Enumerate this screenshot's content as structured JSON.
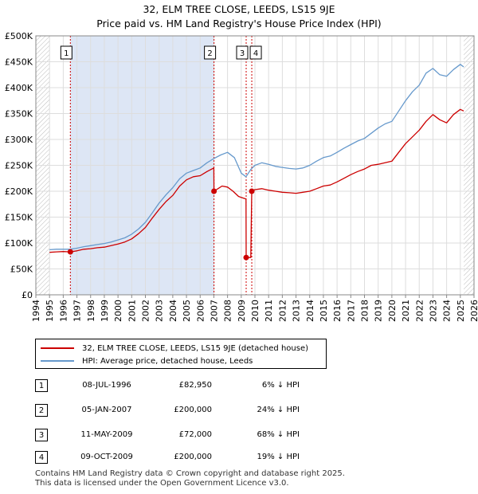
{
  "title_line1": "32, ELM TREE CLOSE, LEEDS, LS15 9JE",
  "title_line2": "Price paid vs. HM Land Registry's House Price Index (HPI)",
  "colors": {
    "price_line": "#cc0000",
    "hpi_line": "#6699cc",
    "shade": "#dde6f5",
    "marker": "#cc0000",
    "event_line": "#cc0000"
  },
  "chart_data": {
    "type": "line",
    "x_range": [
      1994.0,
      2026.0
    ],
    "ylim": [
      0,
      500000
    ],
    "y_ticks": [
      0,
      50000,
      100000,
      150000,
      200000,
      250000,
      300000,
      350000,
      400000,
      450000,
      500000
    ],
    "y_tick_labels": [
      "£0",
      "£50K",
      "£100K",
      "£150K",
      "£200K",
      "£250K",
      "£300K",
      "£350K",
      "£400K",
      "£450K",
      "£500K"
    ],
    "x_tick_labels": [
      "1994",
      "1995",
      "1996",
      "1997",
      "1998",
      "1999",
      "2000",
      "2001",
      "2002",
      "2003",
      "2004",
      "2005",
      "2006",
      "2007",
      "2008",
      "2009",
      "2010",
      "2011",
      "2012",
      "2013",
      "2014",
      "2015",
      "2016",
      "2017",
      "2018",
      "2019",
      "2020",
      "2021",
      "2022",
      "2023",
      "2024",
      "2025",
      "2026"
    ],
    "data_start": 1995.0,
    "data_end": 2025.25,
    "shaded_range": [
      1996.52,
      2007.01
    ],
    "hatched_from": 2025.25,
    "series": [
      {
        "name": "32, ELM TREE CLOSE, LEEDS, LS15 9JE (detached house)",
        "points": [
          [
            1995.0,
            82000
          ],
          [
            1995.5,
            83000
          ],
          [
            1996.0,
            83500
          ],
          [
            1996.5,
            82950
          ],
          [
            1997.0,
            85000
          ],
          [
            1997.5,
            88000
          ],
          [
            1998.0,
            89000
          ],
          [
            1998.5,
            91000
          ],
          [
            1999.0,
            92000
          ],
          [
            1999.5,
            95000
          ],
          [
            2000.0,
            98000
          ],
          [
            2000.5,
            102000
          ],
          [
            2001.0,
            108000
          ],
          [
            2001.5,
            118000
          ],
          [
            2002.0,
            130000
          ],
          [
            2002.5,
            148000
          ],
          [
            2003.0,
            165000
          ],
          [
            2003.5,
            180000
          ],
          [
            2004.0,
            192000
          ],
          [
            2004.5,
            210000
          ],
          [
            2005.0,
            222000
          ],
          [
            2005.5,
            228000
          ],
          [
            2006.0,
            230000
          ],
          [
            2006.5,
            238000
          ],
          [
            2007.0,
            245000
          ],
          [
            2007.01,
            200000
          ],
          [
            2007.3,
            205000
          ],
          [
            2007.6,
            210000
          ],
          [
            2008.0,
            208000
          ],
          [
            2008.4,
            200000
          ],
          [
            2008.8,
            190000
          ],
          [
            2009.0,
            188000
          ],
          [
            2009.35,
            185000
          ],
          [
            2009.36,
            72000
          ],
          [
            2009.5,
            72000
          ],
          [
            2009.7,
            72000
          ],
          [
            2009.77,
            200000
          ],
          [
            2010.0,
            203000
          ],
          [
            2010.5,
            205000
          ],
          [
            2011.0,
            202000
          ],
          [
            2011.5,
            200000
          ],
          [
            2012.0,
            198000
          ],
          [
            2012.5,
            197000
          ],
          [
            2013.0,
            196000
          ],
          [
            2013.5,
            198000
          ],
          [
            2014.0,
            200000
          ],
          [
            2014.5,
            205000
          ],
          [
            2015.0,
            210000
          ],
          [
            2015.5,
            212000
          ],
          [
            2016.0,
            218000
          ],
          [
            2016.5,
            225000
          ],
          [
            2017.0,
            232000
          ],
          [
            2017.5,
            238000
          ],
          [
            2018.0,
            243000
          ],
          [
            2018.5,
            250000
          ],
          [
            2019.0,
            252000
          ],
          [
            2019.5,
            255000
          ],
          [
            2020.0,
            258000
          ],
          [
            2020.5,
            275000
          ],
          [
            2021.0,
            292000
          ],
          [
            2021.5,
            305000
          ],
          [
            2022.0,
            318000
          ],
          [
            2022.5,
            335000
          ],
          [
            2023.0,
            348000
          ],
          [
            2023.5,
            338000
          ],
          [
            2024.0,
            332000
          ],
          [
            2024.5,
            348000
          ],
          [
            2025.0,
            358000
          ],
          [
            2025.25,
            355000
          ]
        ]
      },
      {
        "name": "HPI: Average price, detached house, Leeds",
        "points": [
          [
            1995.0,
            87000
          ],
          [
            1995.5,
            88000
          ],
          [
            1996.0,
            88000
          ],
          [
            1996.5,
            88000
          ],
          [
            1997.0,
            90000
          ],
          [
            1997.5,
            93000
          ],
          [
            1998.0,
            95000
          ],
          [
            1998.5,
            97000
          ],
          [
            1999.0,
            99000
          ],
          [
            1999.5,
            102000
          ],
          [
            2000.0,
            106000
          ],
          [
            2000.5,
            110000
          ],
          [
            2001.0,
            117000
          ],
          [
            2001.5,
            127000
          ],
          [
            2002.0,
            140000
          ],
          [
            2002.5,
            158000
          ],
          [
            2003.0,
            177000
          ],
          [
            2003.5,
            193000
          ],
          [
            2004.0,
            207000
          ],
          [
            2004.5,
            224000
          ],
          [
            2005.0,
            235000
          ],
          [
            2005.5,
            240000
          ],
          [
            2006.0,
            245000
          ],
          [
            2006.5,
            255000
          ],
          [
            2007.0,
            263000
          ],
          [
            2007.5,
            270000
          ],
          [
            2008.0,
            275000
          ],
          [
            2008.5,
            265000
          ],
          [
            2009.0,
            235000
          ],
          [
            2009.35,
            228000
          ],
          [
            2009.7,
            242000
          ],
          [
            2010.0,
            250000
          ],
          [
            2010.5,
            255000
          ],
          [
            2011.0,
            252000
          ],
          [
            2011.5,
            248000
          ],
          [
            2012.0,
            246000
          ],
          [
            2012.5,
            244000
          ],
          [
            2013.0,
            243000
          ],
          [
            2013.5,
            245000
          ],
          [
            2014.0,
            250000
          ],
          [
            2014.5,
            258000
          ],
          [
            2015.0,
            265000
          ],
          [
            2015.5,
            268000
          ],
          [
            2016.0,
            275000
          ],
          [
            2016.5,
            283000
          ],
          [
            2017.0,
            290000
          ],
          [
            2017.5,
            297000
          ],
          [
            2018.0,
            302000
          ],
          [
            2018.5,
            312000
          ],
          [
            2019.0,
            322000
          ],
          [
            2019.5,
            330000
          ],
          [
            2020.0,
            335000
          ],
          [
            2020.5,
            355000
          ],
          [
            2021.0,
            375000
          ],
          [
            2021.5,
            392000
          ],
          [
            2022.0,
            405000
          ],
          [
            2022.5,
            428000
          ],
          [
            2023.0,
            437000
          ],
          [
            2023.5,
            425000
          ],
          [
            2024.0,
            422000
          ],
          [
            2024.5,
            435000
          ],
          [
            2025.0,
            445000
          ],
          [
            2025.25,
            440000
          ]
        ]
      }
    ],
    "events": [
      {
        "label": "1",
        "x": 1996.52,
        "price": 82950
      },
      {
        "label": "2",
        "x": 2007.01,
        "price": 200000
      },
      {
        "label": "3",
        "x": 2009.36,
        "price": 72000
      },
      {
        "label": "4",
        "x": 2009.77,
        "price": 200000
      }
    ]
  },
  "legend": {
    "price_label": "32, ELM TREE CLOSE, LEEDS, LS15 9JE (detached house)",
    "hpi_label": "HPI: Average price, detached house, Leeds"
  },
  "transactions": [
    {
      "num": "1",
      "date": "08-JUL-1996",
      "price": "£82,950",
      "hpi": "6% ↓ HPI"
    },
    {
      "num": "2",
      "date": "05-JAN-2007",
      "price": "£200,000",
      "hpi": "24% ↓ HPI"
    },
    {
      "num": "3",
      "date": "11-MAY-2009",
      "price": "£72,000",
      "hpi": "68% ↓ HPI"
    },
    {
      "num": "4",
      "date": "09-OCT-2009",
      "price": "£200,000",
      "hpi": "19% ↓ HPI"
    }
  ],
  "footer_line1": "Contains HM Land Registry data © Crown copyright and database right 2025.",
  "footer_line2": "This data is licensed under the Open Government Licence v3.0."
}
